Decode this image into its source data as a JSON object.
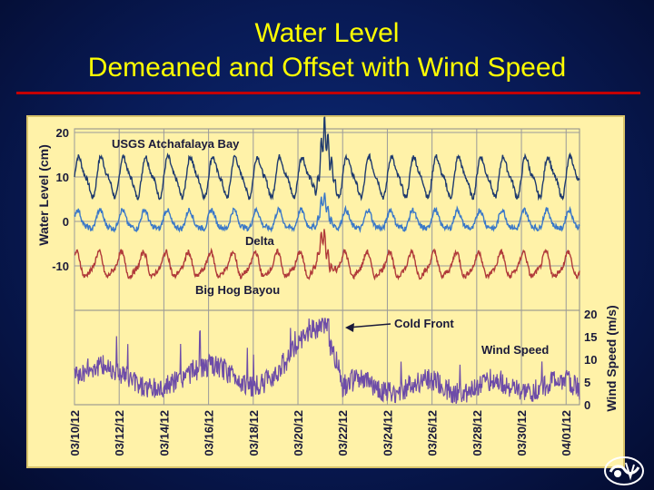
{
  "slide": {
    "title_line1": "Water Level",
    "title_line2": "Demeaned and Offset with Wind Speed"
  },
  "colors": {
    "background": "#081a55",
    "title": "#ffff00",
    "rule": "#c40000",
    "panel": "#fff2a8",
    "usgs": "#1e3a6e",
    "delta": "#3a78c8",
    "bighog": "#b03a3a",
    "wind": "#6d4ca8"
  },
  "chart_data": {
    "type": "line",
    "x_dates": [
      "03/10/12",
      "03/12/12",
      "03/14/12",
      "03/16/12",
      "03/18/12",
      "03/20/12",
      "03/22/12",
      "03/24/12",
      "03/26/12",
      "03/28/12",
      "03/30/12",
      "04/01/12"
    ],
    "x_range_days": [
      0,
      22.6
    ],
    "ylabel_left": "Water Level (cm)",
    "ylim_left": [
      -15,
      20
    ],
    "yticks_left": [
      20,
      10,
      0,
      -10
    ],
    "ylabel_right": "Wind Speed (m/s)",
    "ylim_right": [
      0,
      20
    ],
    "yticks_right": [
      20,
      15,
      10,
      5,
      0
    ],
    "grid": true,
    "series": [
      {
        "name": "USGS Atchafalaya Bay",
        "axis": "left",
        "offset": 10,
        "tidal_amplitude": 4,
        "period_days": 1.0
      },
      {
        "name": "Delta",
        "axis": "left",
        "offset": 0,
        "tidal_amplitude": 2,
        "period_days": 1.0
      },
      {
        "name": "Big Hog Bayou",
        "axis": "left",
        "offset": -10,
        "tidal_amplitude": 2.5,
        "period_days": 1.0
      },
      {
        "name": "Wind Speed",
        "axis": "right",
        "offset": 0
      }
    ],
    "annotations": [
      {
        "text": "Cold Front",
        "x_day": 11.2,
        "y_right": 17
      }
    ]
  }
}
